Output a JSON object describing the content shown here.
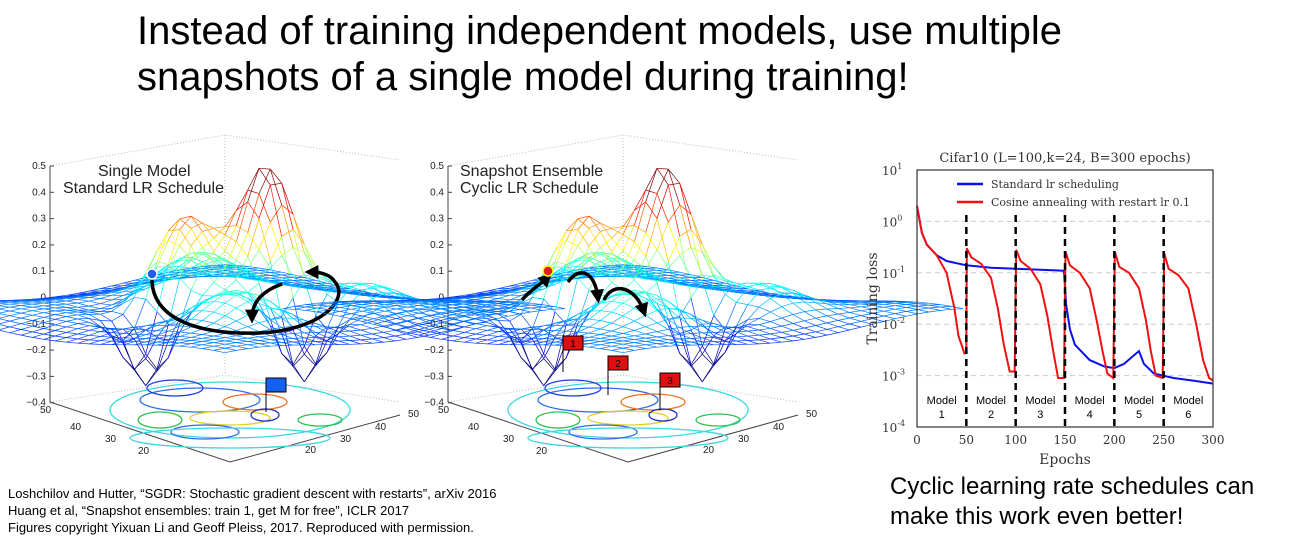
{
  "slide": {
    "title_lines": [
      "Instead of training independent models, use multiple",
      "snapshots of a single model during training!"
    ],
    "citations": [
      "Loshchilov and Hutter, “SGDR: Stochastic gradient descent with restarts”, arXiv 2016",
      "Huang et al, “Snapshot ensembles: train 1, get M for free”, ICLR 2017",
      "Figures copyright Yixuan Li and Geoff Pleiss, 2017. Reproduced with permission."
    ],
    "caption_lines": [
      "Cyclic learning rate schedules can",
      "make this work even better!"
    ]
  },
  "figures": [
    {
      "title_lines": [
        "Single Model",
        "Standard LR Schedule"
      ],
      "z_ticks": [
        "0.5",
        "0.4",
        "0.3",
        "0.2",
        "0.1",
        "0",
        "−0.1",
        "−0.2",
        "−0.3",
        "−0.4"
      ],
      "left_ticks": [
        "50",
        "40",
        "30",
        "20"
      ],
      "right_ticks": [
        "20",
        "30",
        "40",
        "50"
      ],
      "marker_color": "#1f5fe0",
      "flags": [
        {
          "label": "",
          "color": "#1560f0"
        }
      ]
    },
    {
      "title_lines": [
        "Snapshot Ensemble",
        "Cyclic LR Schedule"
      ],
      "z_ticks": [
        "0.5",
        "0.4",
        "0.3",
        "0.2",
        "0.1",
        "0",
        "−0.1",
        "−0.2",
        "−0.3",
        "−0.4"
      ],
      "left_ticks": [
        "50",
        "40",
        "30",
        "20"
      ],
      "right_ticks": [
        "20",
        "30",
        "40",
        "50"
      ],
      "marker_color": "#e02020",
      "flags": [
        {
          "label": "1",
          "color": "#e01010"
        },
        {
          "label": "2",
          "color": "#e01010"
        },
        {
          "label": "3",
          "color": "#e01010"
        }
      ]
    }
  ],
  "chart_data": {
    "type": "line",
    "title": "Cifar10 (L=100,k=24, B=300 epochs)",
    "xlabel": "Epochs",
    "ylabel": "Training loss",
    "xlim": [
      0,
      300
    ],
    "ylim": [
      0.0001,
      10
    ],
    "yscale": "log",
    "x_ticks": [
      "0",
      "50",
      "100",
      "150",
      "200",
      "250",
      "300"
    ],
    "y_ticks": [
      {
        "exp": "1",
        "value": 10
      },
      {
        "exp": "0",
        "value": 1
      },
      {
        "exp": "-1",
        "value": 0.1
      },
      {
        "exp": "-2",
        "value": 0.01
      },
      {
        "exp": "-3",
        "value": 0.001
      },
      {
        "exp": "-4",
        "value": 0.0001
      }
    ],
    "grid": "horizontal dashed",
    "legend_placement": "top",
    "vlines": [
      50,
      100,
      150,
      200,
      250
    ],
    "model_labels": [
      {
        "name": "Model",
        "num": "1"
      },
      {
        "name": "Model",
        "num": "2"
      },
      {
        "name": "Model",
        "num": "3"
      },
      {
        "name": "Model",
        "num": "4"
      },
      {
        "name": "Model",
        "num": "5"
      },
      {
        "name": "Model",
        "num": "6"
      }
    ],
    "series": [
      {
        "name": "Standard lr scheduling",
        "color": "#0a10f0",
        "points": [
          [
            0,
            2
          ],
          [
            5,
            0.6
          ],
          [
            10,
            0.35
          ],
          [
            20,
            0.22
          ],
          [
            30,
            0.17
          ],
          [
            50,
            0.14
          ],
          [
            75,
            0.125
          ],
          [
            100,
            0.12
          ],
          [
            125,
            0.115
          ],
          [
            149,
            0.11
          ],
          [
            151,
            0.025
          ],
          [
            155,
            0.008
          ],
          [
            160,
            0.004
          ],
          [
            175,
            0.002
          ],
          [
            190,
            0.0015
          ],
          [
            200,
            0.0014
          ],
          [
            210,
            0.0017
          ],
          [
            220,
            0.0025
          ],
          [
            225,
            0.003
          ],
          [
            230,
            0.0017
          ],
          [
            240,
            0.0011
          ],
          [
            260,
            0.0009
          ],
          [
            280,
            0.0008
          ],
          [
            300,
            0.0007
          ]
        ]
      },
      {
        "name": "Cosine annealing with restart lr 0.1",
        "color": "#f01010",
        "points": [
          [
            0,
            2
          ],
          [
            5,
            0.6
          ],
          [
            10,
            0.35
          ],
          [
            20,
            0.22
          ],
          [
            30,
            0.1
          ],
          [
            38,
            0.02
          ],
          [
            42,
            0.006
          ],
          [
            48,
            0.0027
          ],
          [
            50,
            0.0028
          ],
          [
            50.5,
            0.3
          ],
          [
            55,
            0.2
          ],
          [
            65,
            0.15
          ],
          [
            75,
            0.08
          ],
          [
            82,
            0.02
          ],
          [
            88,
            0.004
          ],
          [
            94,
            0.0012
          ],
          [
            99,
            0.0012
          ],
          [
            100.5,
            0.28
          ],
          [
            105,
            0.17
          ],
          [
            115,
            0.12
          ],
          [
            125,
            0.06
          ],
          [
            132,
            0.015
          ],
          [
            138,
            0.003
          ],
          [
            143,
            0.0009
          ],
          [
            149,
            0.0009
          ],
          [
            150.5,
            0.26
          ],
          [
            155,
            0.14
          ],
          [
            165,
            0.1
          ],
          [
            175,
            0.05
          ],
          [
            182,
            0.012
          ],
          [
            188,
            0.003
          ],
          [
            193,
            0.0011
          ],
          [
            199,
            0.0009
          ],
          [
            200.5,
            0.26
          ],
          [
            205,
            0.13
          ],
          [
            215,
            0.1
          ],
          [
            225,
            0.05
          ],
          [
            232,
            0.012
          ],
          [
            237,
            0.003
          ],
          [
            242,
            0.001
          ],
          [
            249,
            0.0009
          ],
          [
            250.5,
            0.24
          ],
          [
            255,
            0.12
          ],
          [
            265,
            0.09
          ],
          [
            275,
            0.05
          ],
          [
            283,
            0.01
          ],
          [
            290,
            0.002
          ],
          [
            296,
            0.0009
          ],
          [
            300,
            0.0008
          ]
        ]
      }
    ]
  }
}
